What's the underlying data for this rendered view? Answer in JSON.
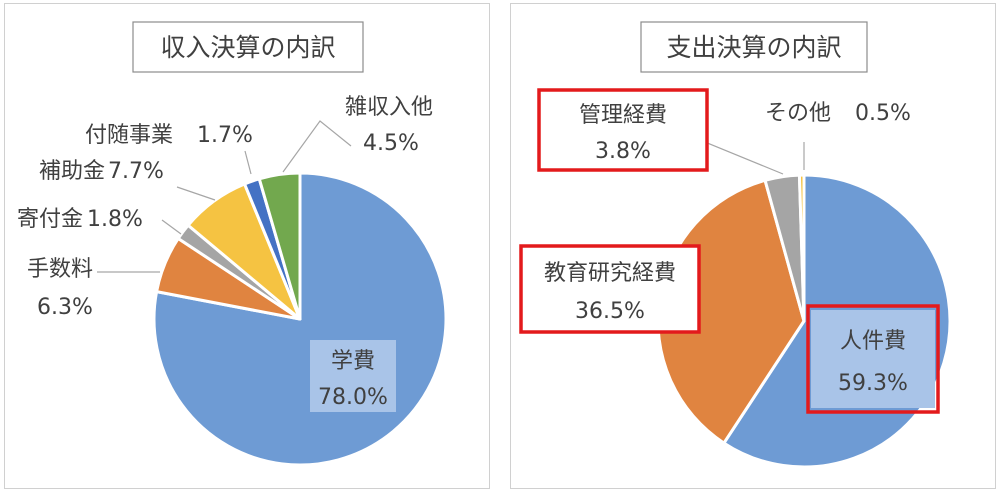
{
  "chart_data": [
    {
      "type": "pie",
      "title": "収入決算の内訳",
      "categories": [
        "学費",
        "手数料",
        "寄付金",
        "補助金",
        "付随事業",
        "雑収入他"
      ],
      "values": [
        78.0,
        6.3,
        1.8,
        7.7,
        1.7,
        4.5
      ],
      "value_labels": [
        "78.0%",
        "6.3%",
        "1.8%",
        "7.7%",
        "1.7%",
        "4.5%"
      ],
      "colors": [
        "#6e9bd4",
        "#e08440",
        "#a5a5a5",
        "#f5c342",
        "#4472c4",
        "#72a84e"
      ],
      "start_angle_deg": 0,
      "direction": "clockwise",
      "legend": "none"
    },
    {
      "type": "pie",
      "title": "支出決算の内訳",
      "categories": [
        "人件費",
        "教育研究経費",
        "管理経費",
        "その他"
      ],
      "values": [
        59.3,
        36.5,
        3.8,
        0.5
      ],
      "value_labels": [
        "59.3%",
        "36.5%",
        "3.8%",
        "0.5%"
      ],
      "colors": [
        "#6e9bd4",
        "#e08440",
        "#a5a5a5",
        "#f5c342"
      ],
      "highlighted": [
        "人件費",
        "教育研究経費",
        "管理経費"
      ],
      "highlight_color": "#e31a1c",
      "start_angle_deg": 0,
      "direction": "clockwise",
      "legend": "none"
    }
  ]
}
